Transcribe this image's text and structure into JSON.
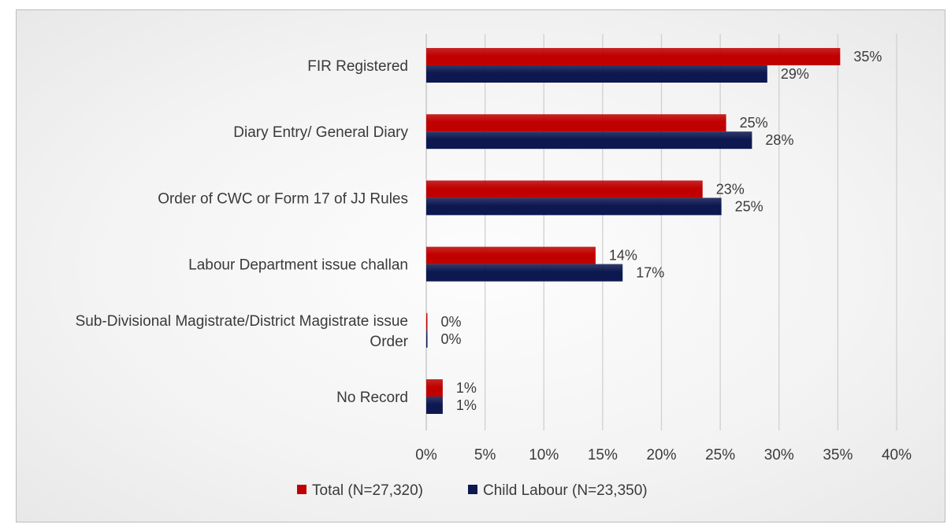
{
  "chart_data": {
    "type": "bar",
    "orientation": "horizontal",
    "categories": [
      "FIR Registered",
      "Diary Entry/ General Diary",
      "Order of CWC or Form 17 of JJ Rules",
      "Labour Department issue challan",
      "Sub-Divisional Magistrate/District Magistrate issue Order",
      "No Record"
    ],
    "category_lines": [
      [
        "FIR Registered"
      ],
      [
        "Diary Entry/ General Diary"
      ],
      [
        "Order of CWC or Form 17 of JJ Rules"
      ],
      [
        "Labour Department issue challan"
      ],
      [
        "Sub-Divisional Magistrate/District Magistrate issue",
        "Order"
      ],
      [
        "No Record"
      ]
    ],
    "series": [
      {
        "name": "Total (N=27,320)",
        "color": "#c00000",
        "values": [
          35.2,
          25.5,
          23.5,
          14.4,
          0.1,
          1.4
        ],
        "labels": [
          "35%",
          "25%",
          "23%",
          "14%",
          "0%",
          "1%"
        ]
      },
      {
        "name": "Child Labour (N=23,350)",
        "color": "#0d1850",
        "values": [
          29.0,
          27.7,
          25.1,
          16.7,
          0.1,
          1.4
        ],
        "labels": [
          "29%",
          "28%",
          "25%",
          "17%",
          "0%",
          "1%"
        ]
      }
    ],
    "xlim": [
      0,
      40
    ],
    "ticks": [
      0,
      5,
      10,
      15,
      20,
      25,
      30,
      35,
      40
    ],
    "tick_labels": [
      "0%",
      "5%",
      "10%",
      "15%",
      "20%",
      "25%",
      "30%",
      "35%",
      "40%"
    ],
    "grid": true,
    "legend_position": "bottom-center",
    "title": "",
    "xlabel": "",
    "ylabel": ""
  }
}
